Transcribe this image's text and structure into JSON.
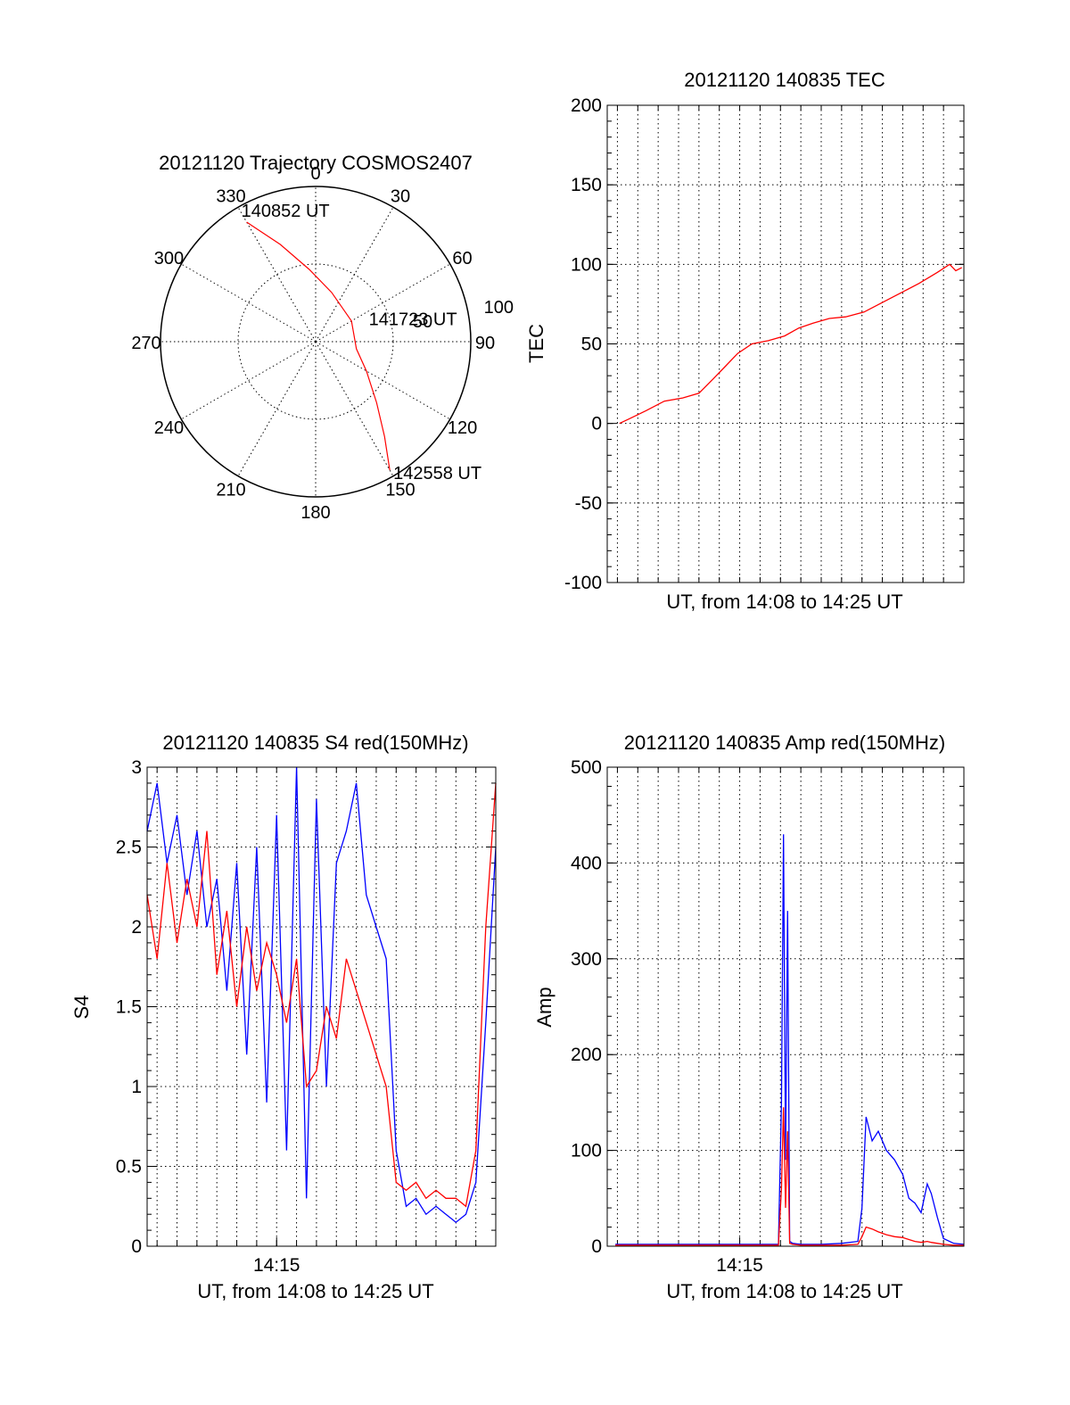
{
  "colors": {
    "red": "#ff0000",
    "blue": "#0000ff",
    "axis": "#000000",
    "grid": "#000000"
  },
  "chart_data": [
    {
      "type": "polar",
      "title": "20121120 Trajectory COSMOS2407",
      "angle_labels": [
        "0",
        "30",
        "60",
        "90",
        "120",
        "150",
        "180",
        "210",
        "240",
        "270",
        "300",
        "330"
      ],
      "radial_labels": [
        "50",
        "100"
      ],
      "trajectory": {
        "color": "red",
        "points": [
          {
            "az": 330,
            "el": 10
          },
          {
            "az": 340,
            "el": 30
          },
          {
            "az": 355,
            "el": 48
          },
          {
            "az": 18,
            "el": 60
          },
          {
            "az": 60,
            "el": 66
          },
          {
            "az": 100,
            "el": 66
          },
          {
            "az": 120,
            "el": 56
          },
          {
            "az": 135,
            "el": 40
          },
          {
            "az": 144,
            "el": 22
          },
          {
            "az": 150,
            "el": 4
          }
        ],
        "annotations": [
          {
            "text": "140852 UT",
            "az": 330,
            "el": 10
          },
          {
            "text": "141723 UT",
            "az": 80,
            "el": 65
          },
          {
            "text": "142558 UT",
            "az": 150,
            "el": 4
          }
        ]
      }
    },
    {
      "type": "line",
      "title": "20121120 140835 TEC",
      "xlabel": "UT, from 14:08 to 14:25 UT",
      "ylabel": "TEC",
      "ylim": [
        -100,
        200
      ],
      "yticks": [
        "-100",
        "-50",
        "0",
        "50",
        "100",
        "150",
        "200"
      ],
      "xlim_minutes": [
        8.5,
        26.0
      ],
      "xtick_labels": [],
      "grid": true,
      "series": [
        {
          "color": "red",
          "x": [
            9.1,
            9.6,
            10.4,
            11.3,
            12.2,
            13.0,
            13.7,
            14.3,
            14.9,
            15.6,
            16.4,
            17.2,
            17.9,
            18.6,
            19.4,
            20.2,
            21.1,
            22.0,
            22.9,
            23.8,
            24.7,
            25.3,
            25.6,
            25.9
          ],
          "y": [
            0,
            3,
            8,
            14,
            16,
            19,
            28,
            36,
            44,
            50,
            52,
            55,
            60,
            63,
            66,
            67,
            70,
            76,
            82,
            88,
            95,
            100,
            96,
            98
          ]
        }
      ]
    },
    {
      "type": "line",
      "title": "20121120 140835 S4 red(150MHz)",
      "xlabel": "UT, from 14:08 to 14:25 UT",
      "ylabel": "S4",
      "ylim": [
        0,
        3
      ],
      "yticks": [
        "0",
        "0.5",
        "1",
        "1.5",
        "2",
        "2.5",
        "3"
      ],
      "xlim_minutes": [
        8.5,
        26.0
      ],
      "xtick_labels": [
        {
          "value": 15,
          "label": "14:15"
        }
      ],
      "grid": true,
      "series": [
        {
          "color": "blue",
          "x": [
            8.5,
            9.0,
            9.5,
            10.0,
            10.5,
            11.0,
            11.5,
            12.0,
            12.5,
            13.0,
            13.5,
            14.0,
            14.5,
            15.0,
            15.5,
            16.0,
            16.5,
            17.0,
            17.5,
            18.0,
            18.5,
            19.0,
            19.5,
            20.0,
            20.5,
            21.0,
            21.5,
            22.0,
            22.5,
            23.0,
            23.5,
            24.0,
            24.5,
            25.0,
            25.5,
            26.0
          ],
          "y": [
            2.6,
            2.9,
            2.4,
            2.7,
            2.2,
            2.6,
            2.0,
            2.3,
            1.6,
            2.4,
            1.2,
            2.5,
            0.9,
            2.7,
            0.6,
            3.0,
            0.3,
            2.8,
            1.0,
            2.4,
            2.6,
            2.9,
            2.2,
            2.0,
            1.8,
            0.6,
            0.25,
            0.3,
            0.2,
            0.25,
            0.2,
            0.15,
            0.2,
            0.4,
            1.4,
            2.5
          ]
        },
        {
          "color": "red",
          "x": [
            8.5,
            9.0,
            9.5,
            10.0,
            10.5,
            11.0,
            11.5,
            12.0,
            12.5,
            13.0,
            13.5,
            14.0,
            14.5,
            15.0,
            15.5,
            16.0,
            16.5,
            17.0,
            17.5,
            18.0,
            18.5,
            19.0,
            19.5,
            20.0,
            20.5,
            21.0,
            21.5,
            22.0,
            22.5,
            23.0,
            23.5,
            24.0,
            24.5,
            25.0,
            25.5,
            26.0
          ],
          "y": [
            2.2,
            1.8,
            2.4,
            1.9,
            2.3,
            2.0,
            2.6,
            1.7,
            2.1,
            1.5,
            2.0,
            1.6,
            1.9,
            1.7,
            1.4,
            1.8,
            1.0,
            1.1,
            1.5,
            1.3,
            1.8,
            1.6,
            1.4,
            1.2,
            1.0,
            0.4,
            0.35,
            0.4,
            0.3,
            0.35,
            0.3,
            0.3,
            0.25,
            0.6,
            2.0,
            2.9
          ]
        }
      ]
    },
    {
      "type": "line",
      "title": "20121120 140835 Amp red(150MHz)",
      "xlabel": "UT, from 14:08 to 14:25 UT",
      "ylabel": "Amp",
      "ylim": [
        0,
        500
      ],
      "yticks": [
        "0",
        "100",
        "200",
        "300",
        "400",
        "500"
      ],
      "xlim_minutes": [
        8.5,
        26.0
      ],
      "xtick_labels": [
        {
          "value": 15,
          "label": "14:15"
        }
      ],
      "grid": true,
      "series": [
        {
          "color": "blue",
          "x": [
            8.9,
            12.0,
            15.0,
            16.9,
            17.05,
            17.15,
            17.25,
            17.35,
            17.45,
            17.6,
            18.0,
            19.0,
            20.0,
            20.8,
            21.0,
            21.2,
            21.5,
            21.8,
            22.2,
            22.6,
            23.0,
            23.3,
            23.6,
            23.9,
            24.2,
            24.4,
            24.7,
            25.0,
            25.5,
            26.0
          ],
          "y": [
            2,
            2,
            2,
            2,
            150,
            430,
            90,
            350,
            5,
            3,
            2,
            2,
            3,
            5,
            40,
            135,
            110,
            120,
            100,
            90,
            75,
            50,
            45,
            35,
            65,
            55,
            30,
            8,
            3,
            2
          ]
        },
        {
          "color": "red",
          "x": [
            8.9,
            12.0,
            15.0,
            16.9,
            17.05,
            17.15,
            17.25,
            17.35,
            17.45,
            17.6,
            18.0,
            19.0,
            20.0,
            20.8,
            21.0,
            21.2,
            21.5,
            21.8,
            22.2,
            22.6,
            23.0,
            23.3,
            23.6,
            23.9,
            24.2,
            24.4,
            24.7,
            25.0,
            25.5,
            26.0
          ],
          "y": [
            1,
            1,
            1,
            1,
            60,
            145,
            40,
            120,
            3,
            2,
            1,
            1,
            1,
            2,
            10,
            20,
            18,
            15,
            12,
            10,
            9,
            7,
            5,
            4,
            5,
            4,
            3,
            2,
            1,
            1
          ]
        }
      ]
    }
  ]
}
